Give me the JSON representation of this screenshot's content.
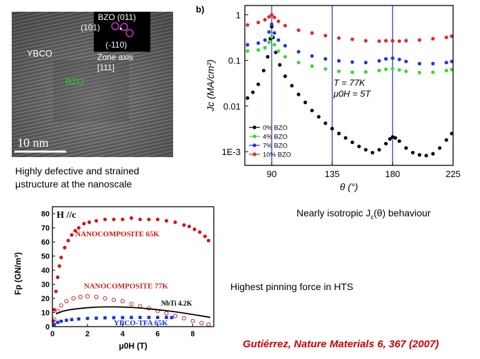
{
  "tem_image": {
    "labels": {
      "bzo_top": "BZO (011)",
      "plane_101": "(101)",
      "plane_110": "(-110)",
      "zone_axis_1": "Zone axis",
      "zone_axis_2": "[111]",
      "ybco": "YBCO",
      "bzo_inline": "BZO",
      "scale_bar": "10 nm"
    },
    "colors": {
      "bzo_inline": "#22cc22",
      "circles": "#cc33cc"
    }
  },
  "captions": {
    "tem_line1": "Highly defective and strained",
    "tem_line2": "μstructure at the nanoscale",
    "jc": "Nearly isotropic J",
    "jc_sub": "c",
    "jc_tail": "(θ) behaviour",
    "fp": "Highest pinning force in HTS",
    "citation": "Gutiérrez, Nature Materials 6, 367 (2007)"
  },
  "chart_data": [
    {
      "type": "scatter",
      "panel_label": "b)",
      "xlabel": "θ (°)",
      "ylabel": "Jc (MA/cm²)",
      "xlim": [
        70,
        225
      ],
      "ylim": [
        0.0005,
        1.6
      ],
      "yscale": "log",
      "x_ticks": [
        90,
        135,
        180,
        225
      ],
      "y_ticks": [
        {
          "value": 1,
          "label": "1"
        },
        {
          "value": 0.1,
          "label": "0.1"
        },
        {
          "value": 0.01,
          "label": "0.01"
        },
        {
          "value": 0.001,
          "label": "1E-3"
        }
      ],
      "vlines": [
        90,
        135,
        180
      ],
      "annotations": [
        "T = 77K",
        "μ0H = 5T"
      ],
      "legend_position": "bottom-left",
      "series": [
        {
          "name": "0% BZO",
          "color": "#000000",
          "x": [
            72,
            76,
            80,
            84,
            87,
            89,
            90,
            91,
            93,
            96,
            100,
            105,
            110,
            115,
            120,
            125,
            130,
            135,
            140,
            145,
            150,
            155,
            160,
            165,
            170,
            175,
            178,
            180,
            182,
            185,
            190,
            195,
            200,
            205,
            210,
            215,
            220,
            224
          ],
          "y": [
            0.015,
            0.02,
            0.03,
            0.06,
            0.12,
            0.3,
            0.55,
            0.32,
            0.15,
            0.08,
            0.045,
            0.028,
            0.018,
            0.012,
            0.008,
            0.0058,
            0.0042,
            0.0032,
            0.0025,
            0.002,
            0.0016,
            0.0013,
            0.0011,
            0.00095,
            0.0011,
            0.0015,
            0.0019,
            0.0021,
            0.002,
            0.0017,
            0.0012,
            0.00095,
            0.00085,
            0.00082,
            0.0009,
            0.0012,
            0.0018,
            0.0025
          ]
        },
        {
          "name": "4% BZO",
          "color": "#33dd33",
          "x": [
            72,
            80,
            85,
            88,
            90,
            92,
            95,
            100,
            110,
            120,
            130,
            140,
            150,
            160,
            170,
            175,
            180,
            185,
            190,
            200,
            210,
            220,
            224
          ],
          "y": [
            0.16,
            0.17,
            0.19,
            0.25,
            0.33,
            0.22,
            0.16,
            0.12,
            0.09,
            0.075,
            0.065,
            0.058,
            0.055,
            0.056,
            0.06,
            0.064,
            0.066,
            0.062,
            0.058,
            0.054,
            0.055,
            0.06,
            0.063
          ]
        },
        {
          "name": "7% BZO",
          "color": "#2233ee",
          "x": [
            72,
            80,
            85,
            88,
            90,
            92,
            95,
            100,
            110,
            120,
            130,
            140,
            150,
            160,
            170,
            175,
            180,
            185,
            190,
            200,
            210,
            220,
            224
          ],
          "y": [
            0.22,
            0.24,
            0.28,
            0.42,
            0.62,
            0.4,
            0.28,
            0.21,
            0.155,
            0.125,
            0.108,
            0.098,
            0.092,
            0.09,
            0.098,
            0.108,
            0.112,
            0.105,
            0.095,
            0.085,
            0.085,
            0.09,
            0.095
          ]
        },
        {
          "name": "10% BZO",
          "color": "#ee2222",
          "x": [
            72,
            80,
            85,
            88,
            90,
            92,
            95,
            100,
            110,
            120,
            130,
            140,
            150,
            160,
            170,
            175,
            180,
            185,
            190,
            200,
            210,
            220,
            224
          ],
          "y": [
            0.6,
            0.68,
            0.78,
            0.9,
            1.0,
            0.88,
            0.72,
            0.58,
            0.46,
            0.4,
            0.35,
            0.31,
            0.29,
            0.27,
            0.265,
            0.27,
            0.27,
            0.265,
            0.27,
            0.28,
            0.3,
            0.32,
            0.34
          ]
        }
      ]
    },
    {
      "type": "scatter",
      "title": "H //c",
      "xlabel": "μ0H (T)",
      "ylabel": "Fp (GN/m³)",
      "xlim": [
        0,
        9.2
      ],
      "ylim": [
        0,
        85
      ],
      "x_ticks": [
        0,
        2,
        4,
        6,
        8
      ],
      "y_ticks": [
        0,
        10,
        20,
        30,
        40,
        50,
        60,
        70,
        80
      ],
      "series": [
        {
          "name": "NANOCOMPOSITE 65K",
          "color": "#dd1111",
          "style": "filled",
          "x": [
            0.05,
            0.1,
            0.2,
            0.3,
            0.4,
            0.5,
            0.7,
            0.9,
            1.1,
            1.3,
            1.5,
            1.8,
            2.1,
            2.5,
            3,
            3.5,
            4,
            4.5,
            5,
            5.5,
            6,
            6.5,
            7,
            7.5,
            7.8,
            8.1,
            8.4,
            8.7,
            8.9
          ],
          "y": [
            4,
            12,
            25,
            35,
            43,
            49,
            56,
            61,
            65,
            68,
            70,
            73,
            74,
            75,
            76,
            76,
            76,
            77,
            76,
            76,
            76,
            75,
            74,
            72,
            71,
            69,
            67,
            64,
            61
          ]
        },
        {
          "name": "NANOCOMPOSITE 77K",
          "color": "#cc2222",
          "style": "open",
          "x": [
            0.1,
            0.3,
            0.5,
            0.8,
            1.2,
            1.6,
            2,
            2.5,
            3,
            3.5,
            4,
            4.5,
            5,
            5.5,
            6,
            6.5,
            7,
            7.5,
            8,
            8.5,
            8.9
          ],
          "y": [
            5,
            11,
            15,
            18,
            20,
            21,
            21.5,
            21,
            20,
            19,
            18,
            16,
            14.5,
            13,
            11,
            9.5,
            7.5,
            6,
            4,
            2.5,
            1.5
          ]
        },
        {
          "name": "NbTi 4.2K",
          "color": "#000000",
          "style": "line",
          "x": [
            0.2,
            0.6,
            1,
            1.5,
            2,
            2.5,
            3,
            3.5,
            4,
            4.5,
            5,
            5.5,
            6,
            6.5,
            7,
            7.5,
            8,
            8.5,
            9
          ],
          "y": [
            9,
            11,
            12,
            12.8,
            13.4,
            13.8,
            14,
            14,
            13.9,
            13.6,
            13.2,
            12.6,
            12,
            11.3,
            10.5,
            9.6,
            8.6,
            7.6,
            6.5
          ]
        },
        {
          "name": "YBCO-TFA 65K",
          "color": "#1133ee",
          "style": "square",
          "x": [
            0.1,
            0.3,
            0.5,
            0.8,
            1.1,
            1.5,
            2,
            2.5,
            3,
            3.5,
            4,
            4.5,
            5,
            5.5,
            6,
            6.5,
            6.8
          ],
          "y": [
            1.5,
            3,
            3.8,
            4.5,
            5,
            5.4,
            5.8,
            6,
            6.2,
            6.3,
            6.4,
            6.5,
            6.5,
            6.5,
            6.5,
            6.5,
            6.4
          ]
        }
      ]
    }
  ]
}
